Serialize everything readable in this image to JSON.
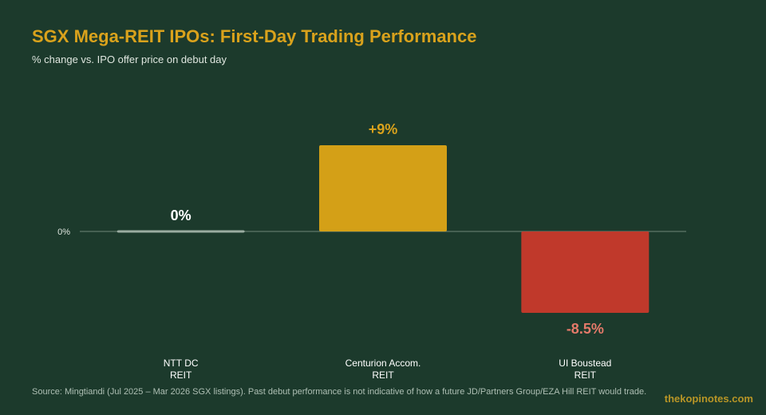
{
  "header": {
    "title": "SGX Mega-REIT IPOs: First-Day Trading Performance",
    "subtitle": "% change vs. IPO offer price on debut day"
  },
  "chart_data": {
    "type": "bar",
    "categories": [
      [
        "NTT DC",
        "REIT"
      ],
      [
        "Centurion Accom.",
        "REIT"
      ],
      [
        "UI Boustead",
        "REIT"
      ]
    ],
    "values": [
      0,
      9,
      -8.5
    ],
    "value_labels": [
      "0%",
      "+9%",
      "-8.5%"
    ],
    "bar_colors": [
      "#9aaca1",
      "#d4a017",
      "#c0392b"
    ],
    "value_label_colors": [
      "#ffffff",
      "#d9a21c",
      "#e57a6a"
    ],
    "zero_line_label": "0%",
    "ylim": [
      -10,
      10
    ],
    "grid": false,
    "legend": "none"
  },
  "footer": {
    "source": "Source: Mingtiandi (Jul 2025 – Mar 2026 SGX listings). Past debut performance is not indicative of how a future JD/Partners Group/EZA Hill REIT would trade.",
    "brand": "thekopinotes.com"
  }
}
